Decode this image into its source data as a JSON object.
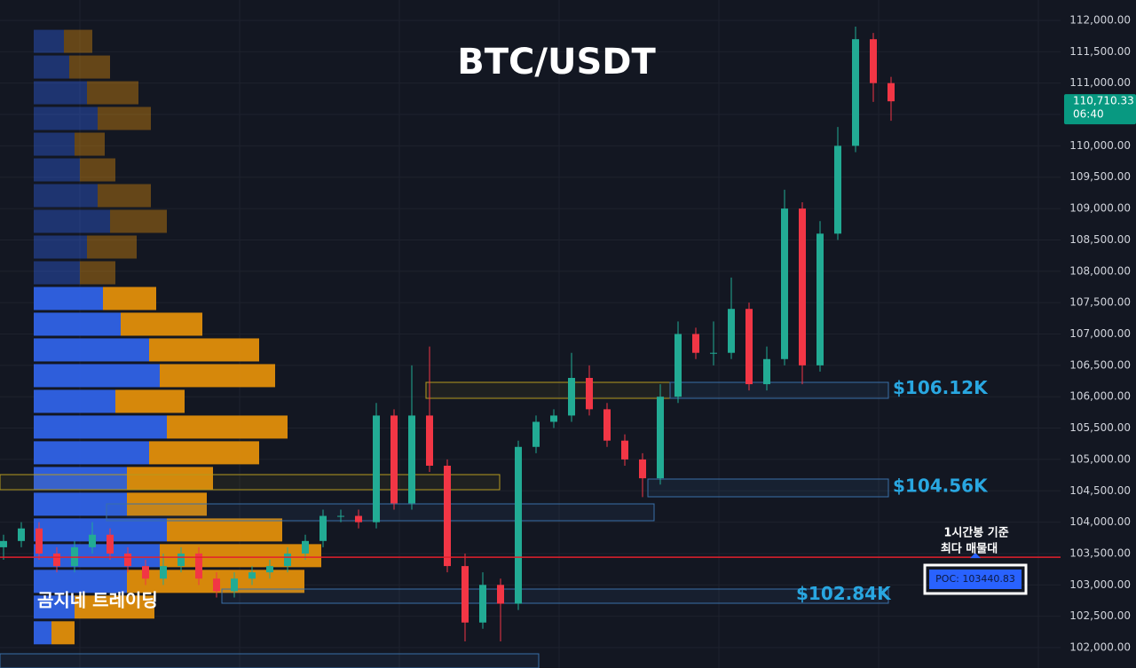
{
  "chart_data": {
    "type": "candlestick",
    "title": "BTC/USDT",
    "watermark": "곰지네 트레이딩",
    "ylim": [
      101675,
      112325
    ],
    "yticks": [
      {
        "value": 102000,
        "label": "102,000.00"
      },
      {
        "value": 102500,
        "label": "102,500.00"
      },
      {
        "value": 103000,
        "label": "103,000.00"
      },
      {
        "value": 103500,
        "label": "103,500.00"
      },
      {
        "value": 104000,
        "label": "104,000.00"
      },
      {
        "value": 104500,
        "label": "104,500.00"
      },
      {
        "value": 105000,
        "label": "105,000.00"
      },
      {
        "value": 105500,
        "label": "105,500.00"
      },
      {
        "value": 106000,
        "label": "106,000.00"
      },
      {
        "value": 106500,
        "label": "106,500.00"
      },
      {
        "value": 107000,
        "label": "107,000.00"
      },
      {
        "value": 107500,
        "label": "107,500.00"
      },
      {
        "value": 108000,
        "label": "108,000.00"
      },
      {
        "value": 108500,
        "label": "108,500.00"
      },
      {
        "value": 109000,
        "label": "109,000.00"
      },
      {
        "value": 109500,
        "label": "109,500.00"
      },
      {
        "value": 110000,
        "label": "110,000.00"
      },
      {
        "value": 110500,
        "label": "110,500.00"
      },
      {
        "value": 111000,
        "label": "111,000.00"
      },
      {
        "value": 111500,
        "label": "111,500.00"
      },
      {
        "value": 112000,
        "label": "112,000.00"
      }
    ],
    "grid": true,
    "up_color": "#22ab94",
    "down_color": "#f23645",
    "candles": {
      "open": [
        103600,
        103700,
        103900,
        103500,
        103300,
        103600,
        103800,
        103500,
        103300,
        103100,
        103300,
        103500,
        103100,
        102900,
        103100,
        103200,
        103300,
        103500,
        103700,
        104100,
        104100,
        104000,
        105700,
        104300,
        105700,
        104900,
        103300,
        102400,
        103000,
        102700,
        105200,
        105600,
        105700,
        106300,
        105800,
        105300,
        105000,
        104700,
        106000,
        107000,
        106700,
        106700,
        107400,
        106200,
        106600,
        109000,
        106500,
        108600,
        110000,
        111700,
        111000
      ],
      "high": [
        103800,
        104000,
        104000,
        103600,
        103700,
        104000,
        103900,
        103600,
        103400,
        103500,
        103600,
        103600,
        103200,
        103200,
        103300,
        103400,
        103600,
        103800,
        104200,
        104200,
        104200,
        105900,
        105800,
        106500,
        106800,
        105000,
        103500,
        103200,
        103100,
        105300,
        105700,
        105800,
        106700,
        106500,
        105900,
        105400,
        105100,
        106200,
        107200,
        107100,
        107200,
        107900,
        107500,
        106800,
        109300,
        109100,
        108800,
        110300,
        111900,
        111800,
        111100
      ],
      "low": [
        103400,
        103600,
        103400,
        103200,
        103200,
        103500,
        103400,
        103200,
        103000,
        103000,
        103200,
        103000,
        102800,
        102800,
        103000,
        103100,
        103200,
        103400,
        103600,
        104000,
        103900,
        103900,
        104200,
        104200,
        104800,
        103200,
        102100,
        102300,
        102100,
        102600,
        105100,
        105500,
        105600,
        105700,
        105200,
        104900,
        104400,
        104600,
        105900,
        106600,
        106500,
        106600,
        106100,
        106100,
        106500,
        106200,
        106400,
        108500,
        109900,
        110700,
        110400
      ],
      "close": [
        103700,
        103900,
        103500,
        103300,
        103600,
        103800,
        103500,
        103300,
        103100,
        103300,
        103500,
        103100,
        102900,
        103100,
        103200,
        103300,
        103500,
        103700,
        104100,
        104100,
        104000,
        105700,
        104300,
        105700,
        104900,
        103300,
        102400,
        103000,
        102700,
        105200,
        105600,
        105700,
        106300,
        105800,
        105300,
        105000,
        104700,
        106000,
        107000,
        106700,
        106700,
        107400,
        106200,
        106600,
        109000,
        106500,
        108600,
        110000,
        111700,
        111000,
        110710
      ]
    },
    "volume_profile": {
      "bins": [
        111850,
        111440,
        111030,
        110620,
        110210,
        109800,
        109390,
        108980,
        108570,
        108160,
        107750,
        107340,
        106930,
        106520,
        106110,
        105700,
        105290,
        104880,
        104470,
        104060,
        103650,
        103240,
        102830,
        102420,
        102010
      ],
      "buy": [
        34,
        40,
        60,
        72,
        46,
        52,
        72,
        86,
        60,
        52,
        78,
        98,
        130,
        142,
        92,
        150,
        130,
        105,
        105,
        150,
        142,
        105,
        46,
        20
      ],
      "sell": [
        32,
        46,
        58,
        60,
        34,
        40,
        60,
        64,
        56,
        40,
        60,
        92,
        124,
        130,
        78,
        136,
        124,
        97,
        90,
        130,
        182,
        200,
        90,
        26
      ],
      "buy_color": "#2f62e6",
      "sell_color": "#e08e0b"
    },
    "levels": [
      {
        "value": 106120,
        "label": "$106.12K"
      },
      {
        "value": 104560,
        "label": "$104.56K"
      },
      {
        "value": 102840,
        "label": "$102.84K"
      }
    ],
    "last_price": {
      "value": 110710.33,
      "label": "110,710.33",
      "countdown": "06:40"
    },
    "annotation": [
      "1시간봉 기준",
      "최다 매물대"
    ],
    "poc": {
      "value": 103440.83,
      "label": "POC: 103440.83"
    }
  }
}
